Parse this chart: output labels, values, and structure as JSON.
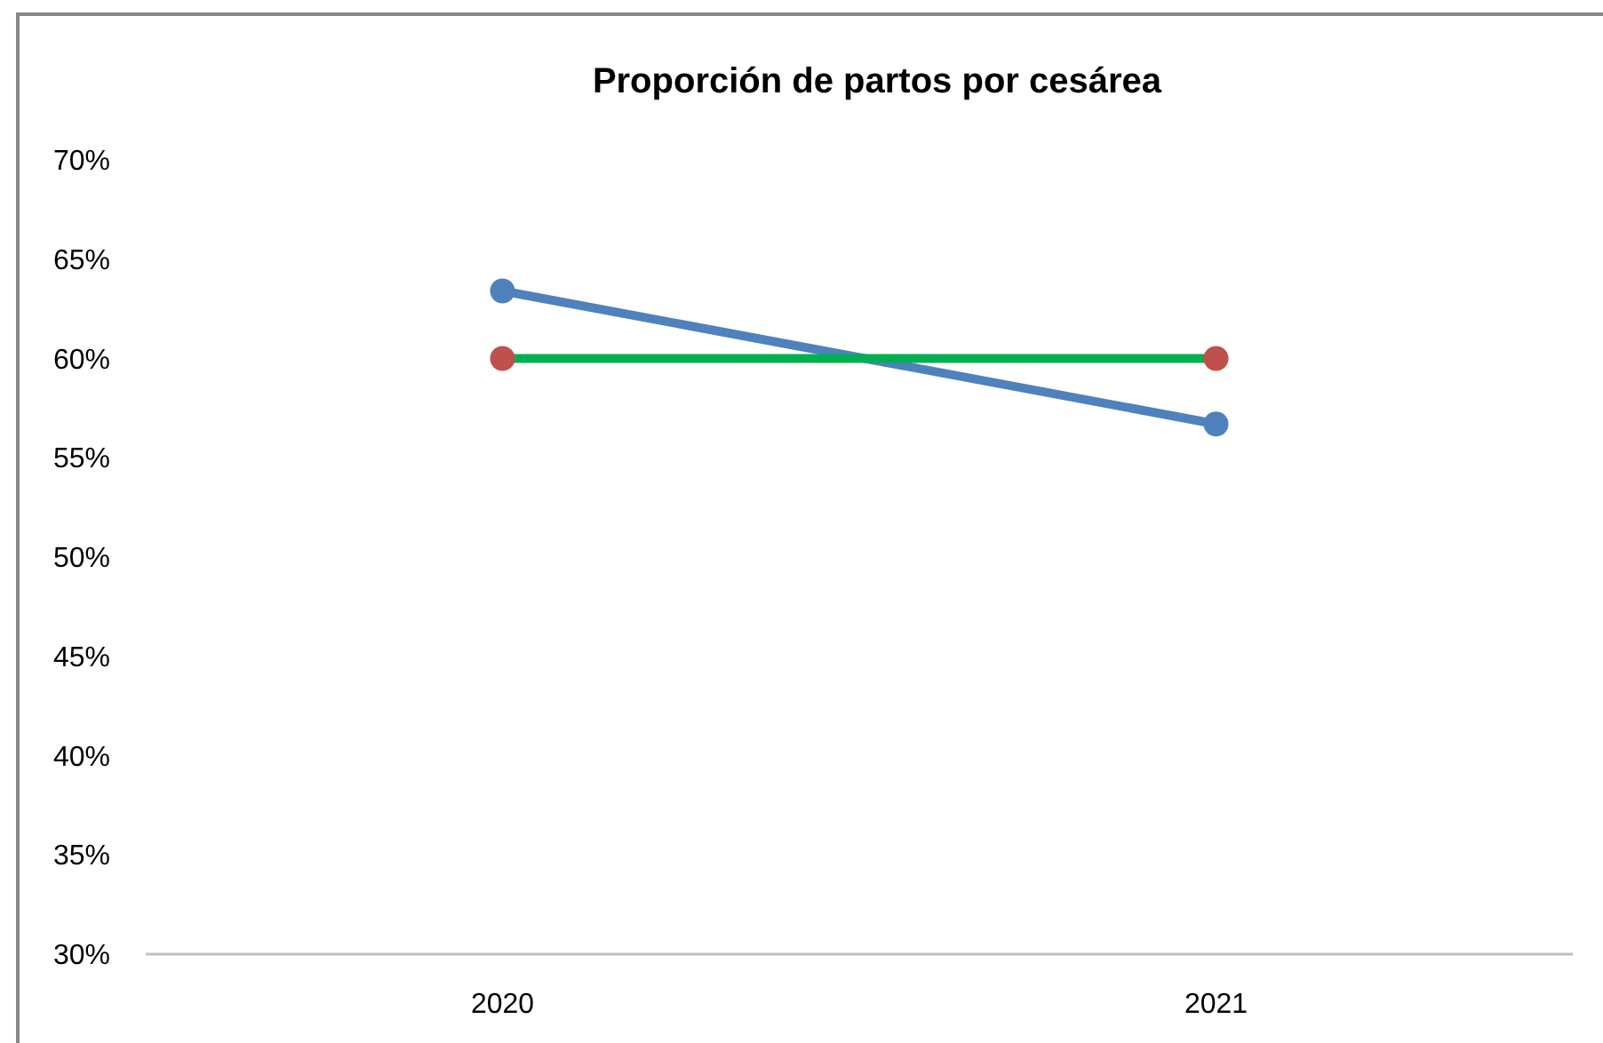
{
  "chart_data": {
    "type": "line",
    "title": "Proporción de partos por cesárea",
    "categories": [
      "2020",
      "2021"
    ],
    "series": [
      {
        "color": "#4f81bd",
        "values": [
          63.4,
          56.7
        ],
        "marker": "circle"
      },
      {
        "color": "#00b050",
        "values": [
          60,
          60
        ],
        "marker": "none"
      },
      {
        "type": "scatter",
        "color": "#c0504d",
        "values": [
          60,
          60
        ],
        "marker": "circle"
      }
    ],
    "ylim": [
      30,
      70
    ],
    "yticks": [
      {
        "value": 30,
        "label": "30%"
      },
      {
        "value": 35,
        "label": "35%"
      },
      {
        "value": 40,
        "label": "40%"
      },
      {
        "value": 45,
        "label": "45%"
      },
      {
        "value": 50,
        "label": "50%"
      },
      {
        "value": 55,
        "label": "55%"
      },
      {
        "value": 60,
        "label": "60%"
      },
      {
        "value": 65,
        "label": "65%"
      },
      {
        "value": 70,
        "label": "70%"
      }
    ],
    "grid": false
  }
}
